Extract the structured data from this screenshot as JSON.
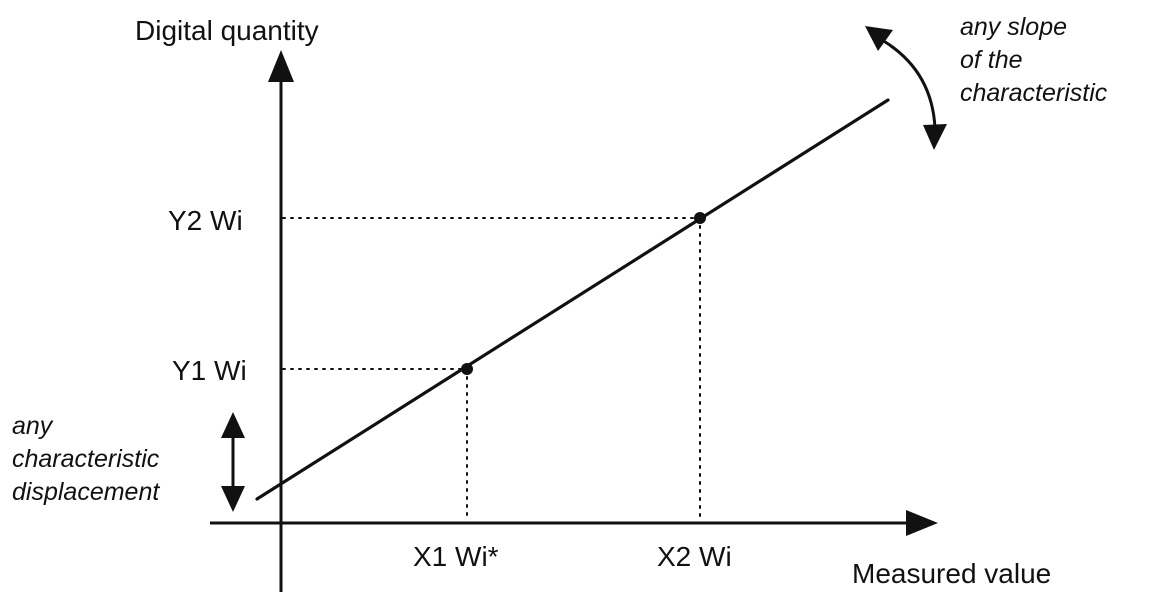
{
  "axes": {
    "y_label": "Digital quantity",
    "x_label": "Measured value"
  },
  "points": {
    "p1": {
      "x_label": "X1 Wi*",
      "y_label": "Y1 Wi"
    },
    "p2": {
      "x_label": "X2 Wi",
      "y_label": "Y2 Wi"
    }
  },
  "annotations": {
    "slope": [
      "any slope",
      "of the",
      "characteristic"
    ],
    "displacement": [
      "any",
      "characteristic",
      "displacement"
    ]
  },
  "colors": {
    "ink": "#111111",
    "background": "#ffffff"
  }
}
